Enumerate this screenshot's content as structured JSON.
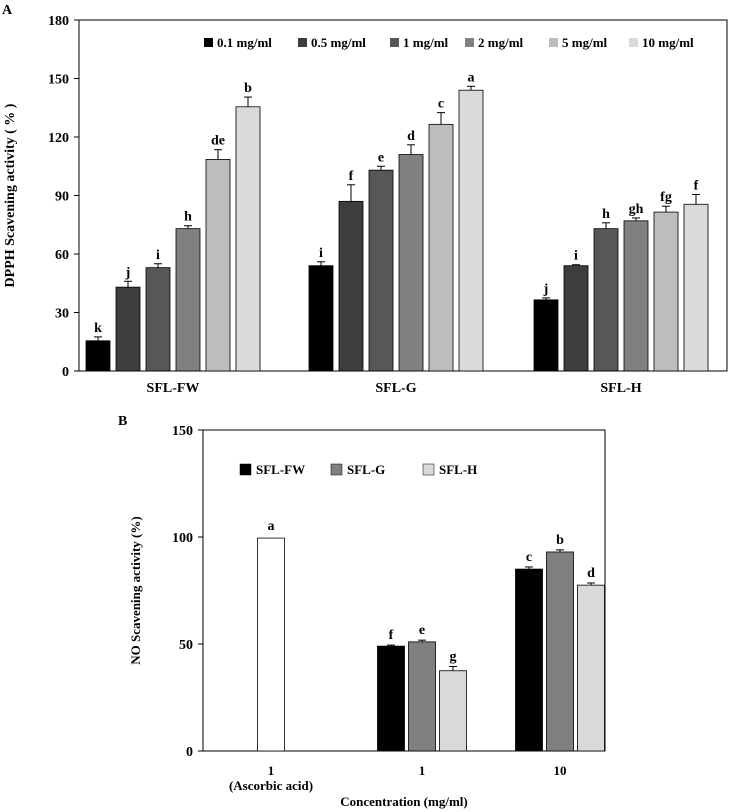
{
  "figure_a": {
    "panel_label": "A"
  },
  "figure_b": {
    "panel_label": "B"
  },
  "colors": {
    "c01": "#000000",
    "c05": "#3d3d3d",
    "c1": "#575757",
    "c2": "#808080",
    "c5": "#bdbdbd",
    "c10": "#dadada",
    "fw": "#000000",
    "g": "#7f7f7f",
    "h": "#d9d9d9",
    "ascorbic": "#ffffff"
  },
  "chart_data": [
    {
      "id": "A",
      "type": "bar",
      "title": "",
      "xlabel": "",
      "ylabel": "DPPH Scavening activity ( % )",
      "ylim": [
        0,
        180
      ],
      "yticks": [
        0,
        30,
        60,
        90,
        120,
        150,
        180
      ],
      "categories": [
        "SFL-FW",
        "SFL-G",
        "SFL-H"
      ],
      "legend_position": "top-right",
      "series": [
        {
          "name": "0.1 mg/ml",
          "color_key": "c01",
          "values": [
            15.5,
            54,
            36.5
          ],
          "errors": [
            2,
            2,
            1
          ],
          "letters": [
            "k",
            "i",
            "j"
          ]
        },
        {
          "name": "0.5 mg/ml",
          "color_key": "c05",
          "values": [
            43,
            87,
            54
          ],
          "errors": [
            3,
            8.5,
            0.5
          ],
          "letters": [
            "j",
            "f",
            "i"
          ]
        },
        {
          "name": "1 mg/ml",
          "color_key": "c1",
          "values": [
            53,
            103,
            73
          ],
          "errors": [
            2,
            2,
            3
          ],
          "letters": [
            "i",
            "e",
            "h"
          ]
        },
        {
          "name": "2 mg/ml",
          "color_key": "c2",
          "values": [
            73,
            111,
            77
          ],
          "errors": [
            1.5,
            5,
            1.5
          ],
          "letters": [
            "h",
            "d",
            "gh"
          ]
        },
        {
          "name": "5 mg/ml",
          "color_key": "c5",
          "values": [
            108.5,
            126.5,
            81.5
          ],
          "errors": [
            5,
            6,
            3
          ],
          "letters": [
            "de",
            "c",
            "fg"
          ]
        },
        {
          "name": "10 mg/ml",
          "color_key": "c10",
          "values": [
            135.5,
            144,
            85.5
          ],
          "errors": [
            5,
            2,
            5
          ],
          "letters": [
            "b",
            "a",
            "f"
          ]
        }
      ]
    },
    {
      "id": "B",
      "type": "bar",
      "title": "",
      "xlabel": "Concentration (mg/ml)",
      "ylabel": "NO Scavening activity (%)",
      "ylim": [
        0,
        150
      ],
      "yticks": [
        0,
        50,
        100,
        150
      ],
      "categories": [
        "1\n(Ascorbic acid)",
        "1",
        "10"
      ],
      "category_lines": [
        [
          "1",
          "(Ascorbic acid)"
        ],
        [
          "1"
        ],
        [
          "10"
        ]
      ],
      "legend_position": "top-left",
      "legend": [
        "SFL-FW",
        "SFL-G",
        "SFL-H"
      ],
      "control": {
        "name": "Ascorbic acid",
        "value": 99.5,
        "letter": "a",
        "color_key": "ascorbic"
      },
      "series": [
        {
          "name": "SFL-FW",
          "color_key": "fw",
          "values": [
            null,
            49,
            85
          ],
          "errors": [
            null,
            0.5,
            1
          ],
          "letters": [
            null,
            "f",
            "c"
          ]
        },
        {
          "name": "SFL-G",
          "color_key": "g",
          "values": [
            null,
            51,
            93
          ],
          "errors": [
            null,
            0.8,
            1
          ],
          "letters": [
            null,
            "e",
            "b"
          ]
        },
        {
          "name": "SFL-H",
          "color_key": "h",
          "values": [
            null,
            37.5,
            77.5
          ],
          "errors": [
            null,
            2,
            1
          ],
          "letters": [
            null,
            "g",
            "d"
          ]
        }
      ]
    }
  ]
}
